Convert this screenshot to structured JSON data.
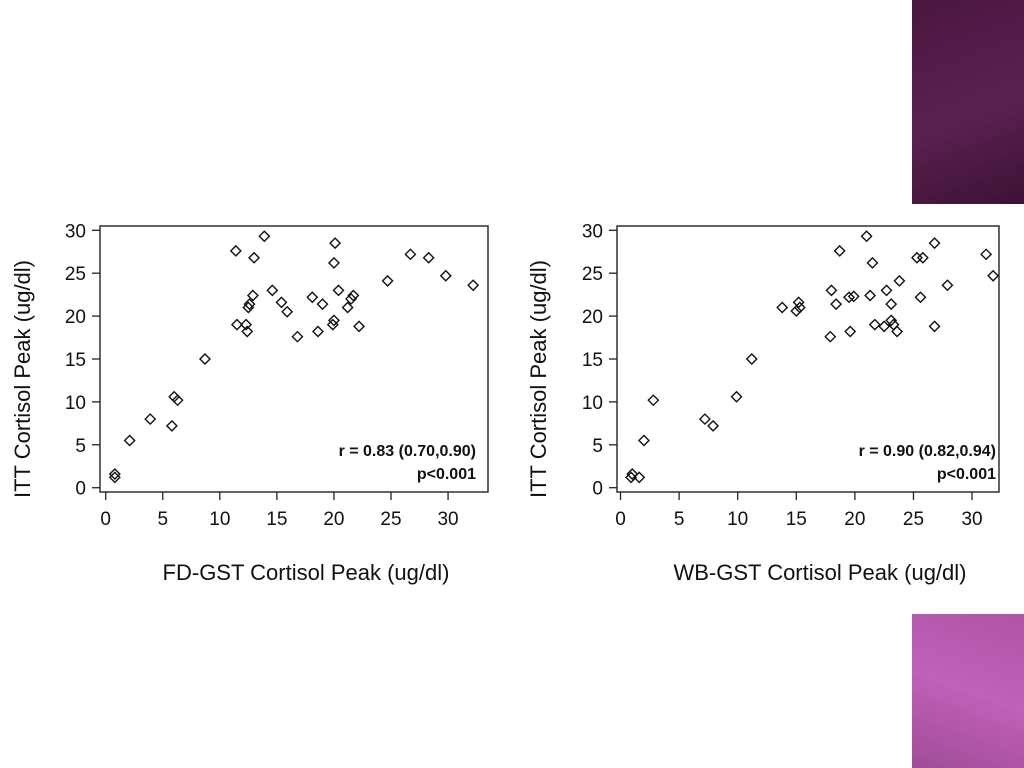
{
  "chart_data": [
    {
      "type": "scatter",
      "xlabel": "FD-GST Cortisol Peak (ug/dl)",
      "ylabel": "ITT Cortisol Peak (ug/dl)",
      "xlim": [
        -0.5,
        33.5
      ],
      "ylim": [
        -0.5,
        30.5
      ],
      "xticks": [
        0,
        5,
        10,
        15,
        20,
        25,
        30
      ],
      "yticks": [
        0,
        5,
        10,
        15,
        20,
        25,
        30
      ],
      "annotation": [
        "r = 0.83 (0.70,0.90)",
        "p<0.001"
      ],
      "marker": "diamond-open",
      "points": [
        [
          0.8,
          1.2
        ],
        [
          0.8,
          1.6
        ],
        [
          2.1,
          5.5
        ],
        [
          3.9,
          8.0
        ],
        [
          5.8,
          7.2
        ],
        [
          6.0,
          10.6
        ],
        [
          6.3,
          10.2
        ],
        [
          8.7,
          15.0
        ],
        [
          11.4,
          27.6
        ],
        [
          11.5,
          19.0
        ],
        [
          12.3,
          19.0
        ],
        [
          12.4,
          18.2
        ],
        [
          12.5,
          21.0
        ],
        [
          12.6,
          21.4
        ],
        [
          12.9,
          22.4
        ],
        [
          13.0,
          26.8
        ],
        [
          13.9,
          29.3
        ],
        [
          14.6,
          23.0
        ],
        [
          15.4,
          21.6
        ],
        [
          15.9,
          20.5
        ],
        [
          16.8,
          17.6
        ],
        [
          18.1,
          22.2
        ],
        [
          18.6,
          18.2
        ],
        [
          19.0,
          21.4
        ],
        [
          19.9,
          19.0
        ],
        [
          20.0,
          19.5
        ],
        [
          20.0,
          26.2
        ],
        [
          20.1,
          28.5
        ],
        [
          20.4,
          23.0
        ],
        [
          21.2,
          21.0
        ],
        [
          21.5,
          22.0
        ],
        [
          21.7,
          22.4
        ],
        [
          22.2,
          18.8
        ],
        [
          24.7,
          24.1
        ],
        [
          26.7,
          27.2
        ],
        [
          28.3,
          26.8
        ],
        [
          29.8,
          24.7
        ],
        [
          32.2,
          23.6
        ]
      ]
    },
    {
      "type": "scatter",
      "xlabel": "WB-GST Cortisol Peak (ug/dl)",
      "ylabel": "ITT Cortisol Peak (ug/dl)",
      "xlim": [
        -0.3,
        32.3
      ],
      "ylim": [
        -0.5,
        30.5
      ],
      "xticks": [
        0,
        5,
        10,
        15,
        20,
        25,
        30
      ],
      "yticks": [
        0,
        5,
        10,
        15,
        20,
        25,
        30
      ],
      "annotation": [
        "r = 0.90 (0.82,0.94)",
        "p<0.001"
      ],
      "marker": "diamond-open",
      "points": [
        [
          0.9,
          1.2
        ],
        [
          1.0,
          1.6
        ],
        [
          1.6,
          1.2
        ],
        [
          2.0,
          5.5
        ],
        [
          2.8,
          10.2
        ],
        [
          7.2,
          8.0
        ],
        [
          7.9,
          7.2
        ],
        [
          9.9,
          10.6
        ],
        [
          11.2,
          15.0
        ],
        [
          13.8,
          21.0
        ],
        [
          15.0,
          20.6
        ],
        [
          15.2,
          21.6
        ],
        [
          15.3,
          21.0
        ],
        [
          17.9,
          17.6
        ],
        [
          18.0,
          23.0
        ],
        [
          18.4,
          21.4
        ],
        [
          18.7,
          27.6
        ],
        [
          19.5,
          22.2
        ],
        [
          19.6,
          18.2
        ],
        [
          19.9,
          22.3
        ],
        [
          21.0,
          29.3
        ],
        [
          21.3,
          22.4
        ],
        [
          21.5,
          26.2
        ],
        [
          21.7,
          19.0
        ],
        [
          22.5,
          18.8
        ],
        [
          22.7,
          23.0
        ],
        [
          23.1,
          21.4
        ],
        [
          23.1,
          19.5
        ],
        [
          23.3,
          19.0
        ],
        [
          23.6,
          18.2
        ],
        [
          23.8,
          24.1
        ],
        [
          25.3,
          26.8
        ],
        [
          25.6,
          22.2
        ],
        [
          25.8,
          26.8
        ],
        [
          26.8,
          28.5
        ],
        [
          26.8,
          18.8
        ],
        [
          27.9,
          23.6
        ],
        [
          31.2,
          27.2
        ],
        [
          31.8,
          24.7
        ]
      ]
    }
  ]
}
